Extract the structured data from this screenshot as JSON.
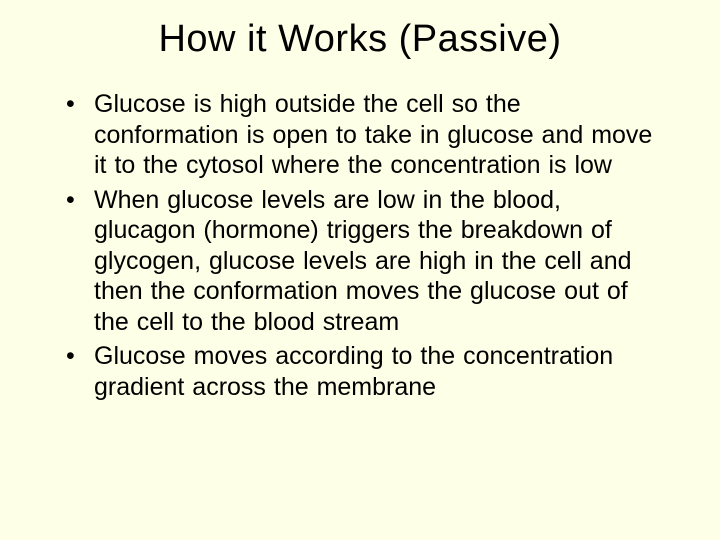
{
  "slide": {
    "background_color": "#feffe7",
    "text_color": "#000000",
    "font_family": "Comic Sans MS",
    "title": "How it Works (Passive)",
    "title_fontsize": 38,
    "bullet_fontsize": 25,
    "bullets": [
      "Glucose is high outside the cell so the conformation is open to take in glucose and move it to the cytosol where the concentration is low",
      "When glucose levels are low in the blood, glucagon (hormone) triggers the breakdown of glycogen, glucose levels are high in the cell and then the conformation moves the glucose out of the cell to the blood stream",
      "Glucose moves according to the concentration gradient across the membrane"
    ]
  }
}
